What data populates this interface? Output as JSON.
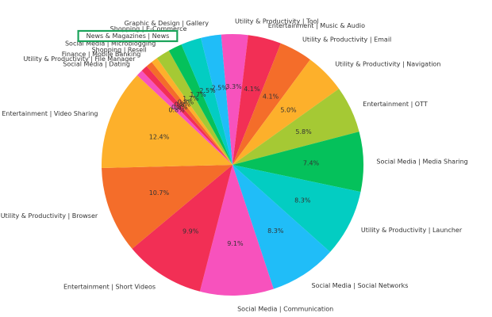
{
  "chart_data": {
    "type": "pie",
    "start_angle_deg": 95,
    "direction": "clockwise",
    "highlighted_category": "News & Magazines | News",
    "highlight_color": "#1aa35a",
    "slices": [
      {
        "label": "Utility & Productivity | Tool",
        "value": 3.3,
        "color": "#f752bd"
      },
      {
        "label": "Entertainment | Music & Audio",
        "value": 4.1,
        "color": "#f22f55"
      },
      {
        "label": "Utility & Productivity | Email",
        "value": 4.1,
        "color": "#f46d2a"
      },
      {
        "label": "Utility & Productivity | Navigation",
        "value": 5.0,
        "color": "#fdb02b"
      },
      {
        "label": "Entertainment | OTT",
        "value": 5.8,
        "color": "#a5c934"
      },
      {
        "label": "Social Media | Media Sharing",
        "value": 7.4,
        "color": "#05c15b"
      },
      {
        "label": "Utility & Productivity | Launcher",
        "value": 8.3,
        "color": "#03cdc2"
      },
      {
        "label": "Social Media | Social Networks",
        "value": 8.3,
        "color": "#20bdf8"
      },
      {
        "label": "Social Media | Communication",
        "value": 9.1,
        "color": "#f752bd"
      },
      {
        "label": "Entertainment | Short Videos",
        "value": 9.9,
        "color": "#f22f55"
      },
      {
        "label": "Utility & Productivity | Browser",
        "value": 10.7,
        "color": "#f46d2a"
      },
      {
        "label": "Entertainment | Video Sharing",
        "value": 12.4,
        "color": "#fdb02b"
      },
      {
        "label": "Social Media | Dating",
        "value": 0.8,
        "color": "#f752bd"
      },
      {
        "label": "Utility & Productivity | File Manager",
        "value": 0.8,
        "color": "#f22f55"
      },
      {
        "label": "Finance | Mobile Banking",
        "value": 0.8,
        "color": "#f46d2a"
      },
      {
        "label": "Shopping | Resell",
        "value": 0.8,
        "color": "#fdb02b"
      },
      {
        "label": "Social Media | Microblogging",
        "value": 1.7,
        "color": "#a5c934"
      },
      {
        "label": "News & Magazines | News",
        "value": 1.7,
        "color": "#05c15b"
      },
      {
        "label": "Shopping | E-Commerce",
        "value": 2.5,
        "color": "#03cdc2"
      },
      {
        "label": "Graphic & Design | Gallery",
        "value": 2.5,
        "color": "#20bdf8"
      }
    ]
  }
}
